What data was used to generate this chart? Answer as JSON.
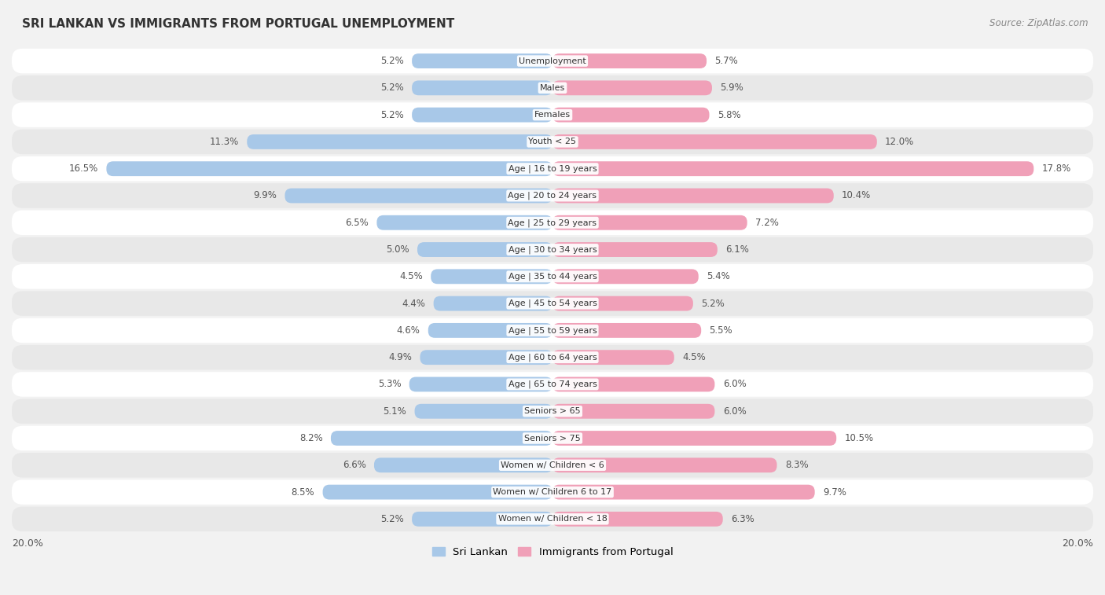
{
  "title": "SRI LANKAN VS IMMIGRANTS FROM PORTUGAL UNEMPLOYMENT",
  "source": "Source: ZipAtlas.com",
  "categories": [
    "Unemployment",
    "Males",
    "Females",
    "Youth < 25",
    "Age | 16 to 19 years",
    "Age | 20 to 24 years",
    "Age | 25 to 29 years",
    "Age | 30 to 34 years",
    "Age | 35 to 44 years",
    "Age | 45 to 54 years",
    "Age | 55 to 59 years",
    "Age | 60 to 64 years",
    "Age | 65 to 74 years",
    "Seniors > 65",
    "Seniors > 75",
    "Women w/ Children < 6",
    "Women w/ Children 6 to 17",
    "Women w/ Children < 18"
  ],
  "sri_lankan": [
    5.2,
    5.2,
    5.2,
    11.3,
    16.5,
    9.9,
    6.5,
    5.0,
    4.5,
    4.4,
    4.6,
    4.9,
    5.3,
    5.1,
    8.2,
    6.6,
    8.5,
    5.2
  ],
  "portugal": [
    5.7,
    5.9,
    5.8,
    12.0,
    17.8,
    10.4,
    7.2,
    6.1,
    5.4,
    5.2,
    5.5,
    4.5,
    6.0,
    6.0,
    10.5,
    8.3,
    9.7,
    6.3
  ],
  "color_sri_lankan": "#a8c8e8",
  "color_portugal": "#f0a0b8",
  "color_portugal_highlight": "#e8608a",
  "bar_height": 0.55,
  "xlim": 20.0,
  "background_color": "#f2f2f2",
  "row_color_odd": "#ffffff",
  "row_color_even": "#e8e8e8",
  "legend_sri_lankan": "Sri Lankan",
  "legend_portugal": "Immigrants from Portugal",
  "title_fontsize": 11,
  "label_fontsize": 8.5,
  "value_fontsize": 8.5,
  "cat_fontsize": 8.0
}
